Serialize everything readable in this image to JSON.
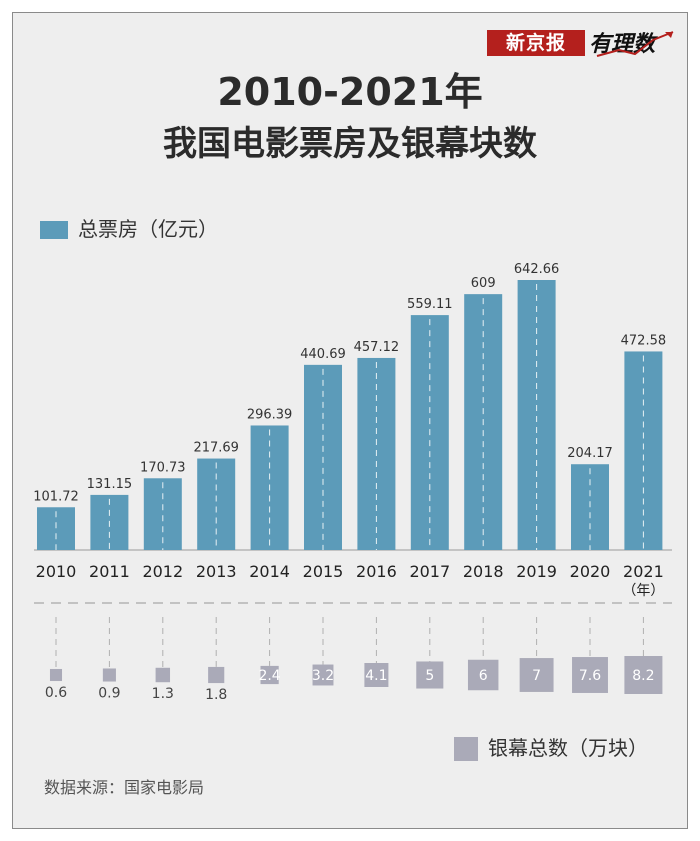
{
  "brand": {
    "name": "新京报",
    "column": "有理数"
  },
  "title": "2010-2021年",
  "subtitle": "我国电影票房及银幕块数",
  "legend": {
    "box_office": "总票房（亿元）",
    "screens": "银幕总数（万块）"
  },
  "x_unit": "（年）",
  "source": "数据来源：国家电影局",
  "colors": {
    "box_office_bar": "#5c9bb9",
    "screen_box": "#aaaab8",
    "brand_red": "#b4201d"
  },
  "chart_data": {
    "type": "bar",
    "categories": [
      "2010",
      "2011",
      "2012",
      "2013",
      "2014",
      "2015",
      "2016",
      "2017",
      "2018",
      "2019",
      "2020",
      "2021"
    ],
    "series": [
      {
        "name": "总票房（亿元）",
        "values": [
          101.72,
          131.15,
          170.73,
          217.69,
          296.39,
          440.69,
          457.12,
          559.11,
          609,
          642.66,
          204.17,
          472.58
        ]
      },
      {
        "name": "银幕总数（万块）",
        "values": [
          0.6,
          0.9,
          1.3,
          1.8,
          2.4,
          3.2,
          4.1,
          5,
          6,
          7,
          7.6,
          8.2
        ]
      }
    ],
    "value_labels": {
      "box_office": [
        "101.72",
        "131.15",
        "170.73",
        "217.69",
        "296.39",
        "440.69",
        "457.12",
        "559.11",
        "609",
        "642.66",
        "204.17",
        "472.58"
      ],
      "screens": [
        "0.6",
        "0.9",
        "1.3",
        "1.8",
        "2.4",
        "3.2",
        "4.1",
        "5",
        "6",
        "7",
        "7.6",
        "8.2"
      ]
    },
    "legend_position": "top-left",
    "grid": false
  }
}
